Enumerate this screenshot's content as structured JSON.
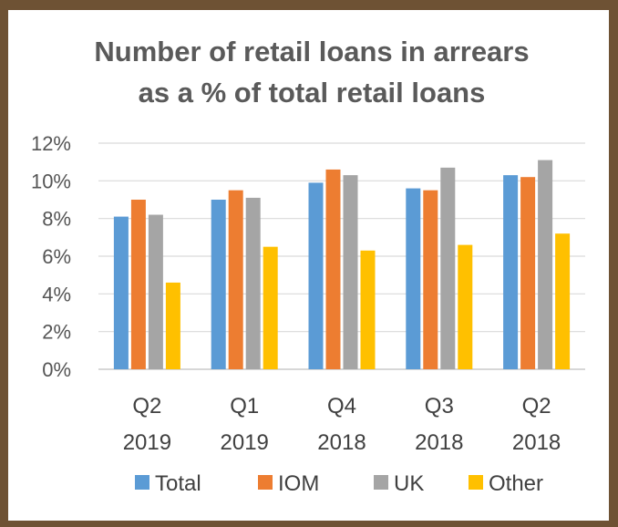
{
  "chart_data": {
    "type": "bar",
    "title_lines": [
      "Number of retail loans in arrears",
      "as a % of total retail loans"
    ],
    "xlabel": "",
    "ylabel": "",
    "ylim": [
      0,
      12
    ],
    "yticks": [
      "0%",
      "2%",
      "4%",
      "6%",
      "8%",
      "10%",
      "12%"
    ],
    "grid": true,
    "legend_position": "bottom",
    "categories": [
      [
        "Q2",
        "2019"
      ],
      [
        "Q1",
        "2019"
      ],
      [
        "Q4",
        "2018"
      ],
      [
        "Q3",
        "2018"
      ],
      [
        "Q2",
        "2018"
      ]
    ],
    "series": [
      {
        "name": "Total",
        "color": "#5b9bd5",
        "values": [
          8.1,
          9.0,
          9.9,
          9.6,
          10.3
        ]
      },
      {
        "name": "IOM",
        "color": "#ed7d31",
        "values": [
          9.0,
          9.5,
          10.6,
          9.5,
          10.2
        ]
      },
      {
        "name": "UK",
        "color": "#a5a5a5",
        "values": [
          8.2,
          9.1,
          10.3,
          10.7,
          11.1
        ]
      },
      {
        "name": "Other",
        "color": "#ffc000",
        "values": [
          4.6,
          6.5,
          6.3,
          6.6,
          7.2
        ]
      }
    ]
  }
}
